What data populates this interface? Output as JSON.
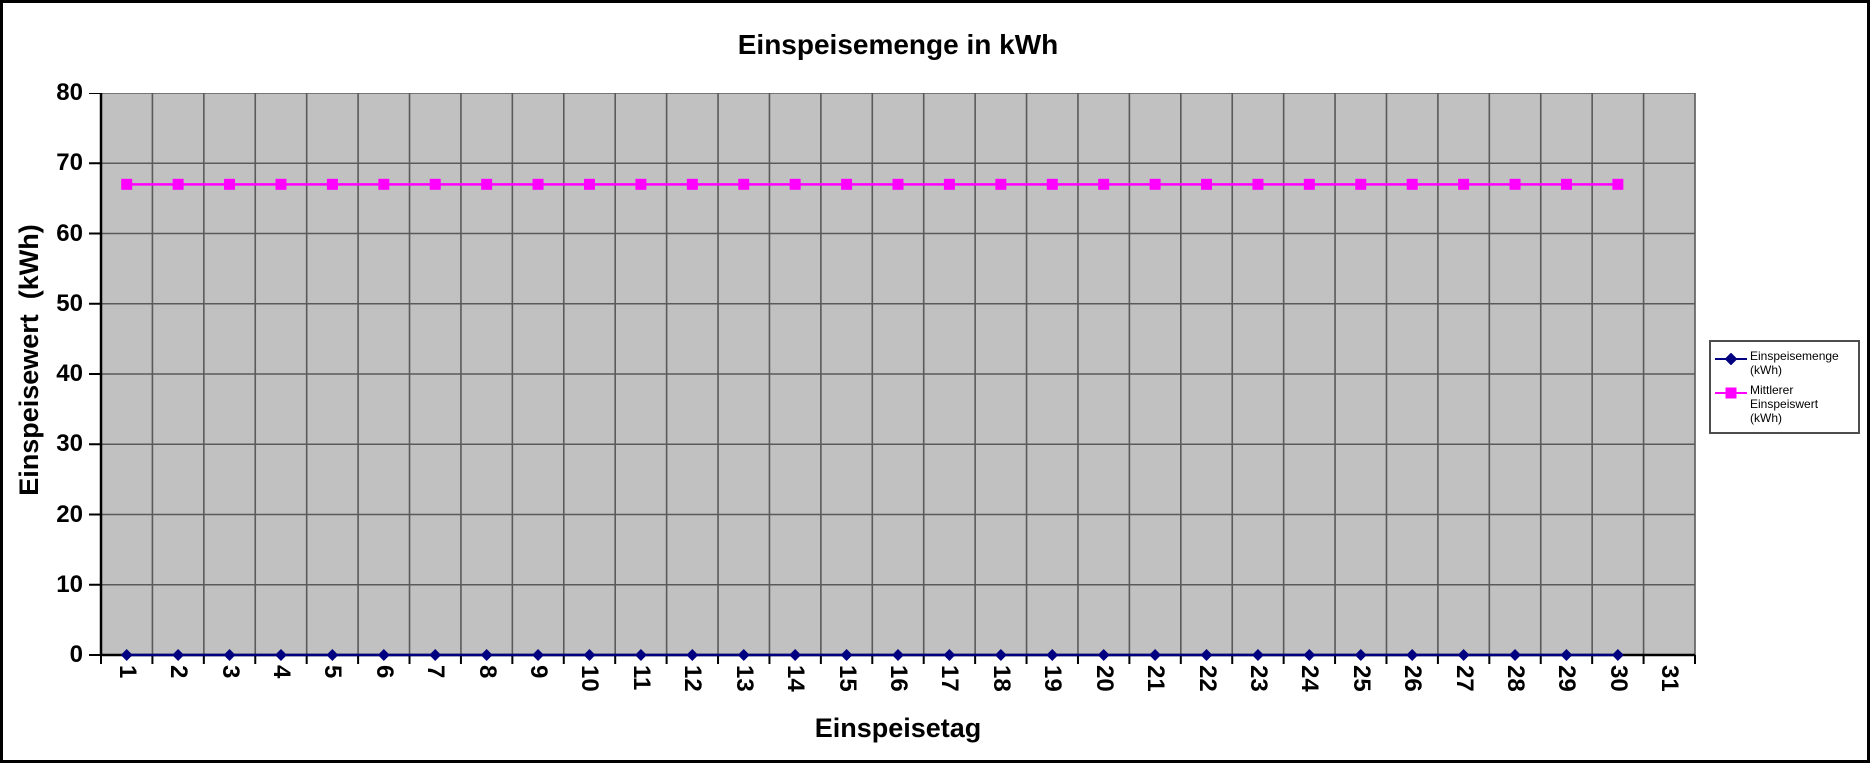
{
  "chart_data": {
    "type": "line",
    "title": "Einspeisemenge in kWh",
    "xlabel": "Einspeisetag",
    "ylabel": "Einspeisewert  (kWh)",
    "categories": [
      1,
      2,
      3,
      4,
      5,
      6,
      7,
      8,
      9,
      10,
      11,
      12,
      13,
      14,
      15,
      16,
      17,
      18,
      19,
      20,
      21,
      22,
      23,
      24,
      25,
      26,
      27,
      28,
      29,
      30,
      31
    ],
    "series": [
      {
        "name": "Einspeisemenge\n(kWh)",
        "color": "#000080",
        "marker": "diamond",
        "values": [
          0,
          0,
          0,
          0,
          0,
          0,
          0,
          0,
          0,
          0,
          0,
          0,
          0,
          0,
          0,
          0,
          0,
          0,
          0,
          0,
          0,
          0,
          0,
          0,
          0,
          0,
          0,
          0,
          0,
          0,
          null
        ]
      },
      {
        "name": "Mittlerer Einspeiswert\n(kWh)",
        "color": "#FF00FF",
        "marker": "square",
        "values": [
          67,
          67,
          67,
          67,
          67,
          67,
          67,
          67,
          67,
          67,
          67,
          67,
          67,
          67,
          67,
          67,
          67,
          67,
          67,
          67,
          67,
          67,
          67,
          67,
          67,
          67,
          67,
          67,
          67,
          67,
          null
        ]
      }
    ],
    "ylim": [
      0,
      80
    ],
    "ytick_step": 10,
    "grid": true,
    "legend_position": "right",
    "plot_bg": "#C1C1C1",
    "grid_color": "#5A5A5A",
    "axis_color": "#000000"
  }
}
